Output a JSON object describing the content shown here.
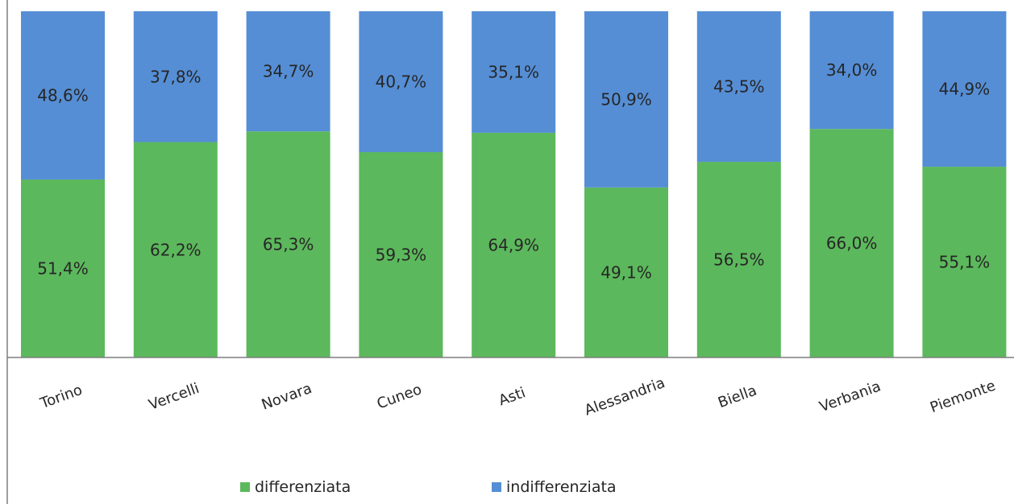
{
  "chart_data": {
    "type": "bar",
    "stacked": true,
    "percent_stacked": true,
    "categories": [
      "Torino",
      "Vercelli",
      "Novara",
      "Cuneo",
      "Asti",
      "Alessandria",
      "Biella",
      "Verbania",
      "Piemonte"
    ],
    "series": [
      {
        "name": "differenziata",
        "color": "#5cb85c",
        "values": [
          51.4,
          62.2,
          65.3,
          59.3,
          64.9,
          49.1,
          56.5,
          66.0,
          55.1
        ],
        "labels": [
          "51,4%",
          "62,2%",
          "65,3%",
          "59,3%",
          "64,9%",
          "49,1%",
          "56,5%",
          "66,0%",
          "55,1%"
        ]
      },
      {
        "name": "indifferenziata",
        "color": "#558ed5",
        "values": [
          48.6,
          37.8,
          34.7,
          40.7,
          35.1,
          50.9,
          43.5,
          34.0,
          44.9
        ],
        "labels": [
          "48,6%",
          "37,8%",
          "34,7%",
          "40,7%",
          "35,1%",
          "50,9%",
          "43,5%",
          "34,0%",
          "44,9%"
        ]
      }
    ],
    "ylim": [
      0,
      100
    ],
    "grid": false,
    "legend_position": "bottom"
  }
}
